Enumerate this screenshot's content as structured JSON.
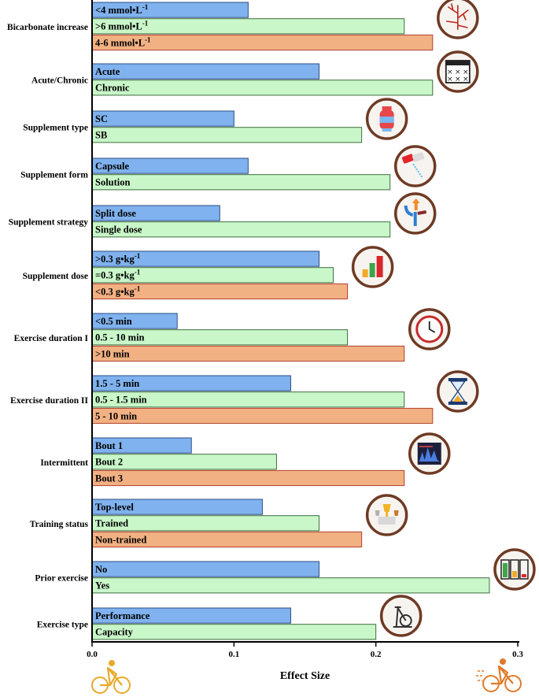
{
  "chart_data": {
    "type": "bar",
    "orientation": "horizontal",
    "xlabel": "Effect Size",
    "xlim": [
      0.0,
      0.3
    ],
    "xticks": [
      "0.0",
      "0.1",
      "0.2",
      "0.3"
    ],
    "grid": false,
    "colors": {
      "blue": "#7fb2ee",
      "green": "#c9f7c9",
      "orange": "#f2b183"
    },
    "groups": [
      {
        "label": "Bicarbonate increase",
        "icon": "blood-vessels-icon",
        "bars": [
          {
            "label": "<4 mmol•L",
            "sup": "-1",
            "value": 0.11,
            "color": "blue"
          },
          {
            "label": ">6 mmol•L",
            "sup": "-1",
            "value": 0.22,
            "color": "green"
          },
          {
            "label": "4-6 mmol•L",
            "sup": "-1",
            "value": 0.24,
            "color": "orange"
          }
        ]
      },
      {
        "label": "Acute/Chronic",
        "icon": "calendar-icon",
        "bars": [
          {
            "label": "Acute",
            "value": 0.16,
            "color": "blue"
          },
          {
            "label": "Chronic",
            "value": 0.24,
            "color": "green"
          }
        ]
      },
      {
        "label": "Supplement type",
        "icon": "supplement-bottle-icon",
        "bars": [
          {
            "label": "SC",
            "value": 0.1,
            "color": "blue"
          },
          {
            "label": "SB",
            "value": 0.19,
            "color": "green"
          }
        ]
      },
      {
        "label": "Supplement form",
        "icon": "capsule-pour-icon",
        "bars": [
          {
            "label": "Capsule",
            "value": 0.11,
            "color": "blue"
          },
          {
            "label": "Solution",
            "value": 0.21,
            "color": "green"
          }
        ]
      },
      {
        "label": "Supplement strategy",
        "icon": "split-arrows-icon",
        "bars": [
          {
            "label": "Split dose",
            "value": 0.09,
            "color": "blue"
          },
          {
            "label": "Single dose",
            "value": 0.21,
            "color": "green"
          }
        ]
      },
      {
        "label": "Supplement dose",
        "icon": "bar-chart-icon",
        "bars": [
          {
            "label": ">0.3 g•kg",
            "sup": "-1",
            "value": 0.16,
            "color": "blue"
          },
          {
            "label": "=0.3 g•kg",
            "sup": "-1",
            "value": 0.17,
            "color": "green"
          },
          {
            "label": "<0.3 g•kg",
            "sup": "-1",
            "value": 0.18,
            "color": "orange"
          }
        ]
      },
      {
        "label": "Exercise duration I",
        "icon": "clock-icon",
        "bars": [
          {
            "label": "<0.5 min",
            "value": 0.06,
            "color": "blue"
          },
          {
            "label": "0.5 - 10 min",
            "value": 0.18,
            "color": "green"
          },
          {
            "label": ">10 min",
            "value": 0.22,
            "color": "orange"
          }
        ]
      },
      {
        "label": "Exercise duration II",
        "icon": "hourglass-icon",
        "bars": [
          {
            "label": "1.5 - 5 min",
            "value": 0.14,
            "color": "blue"
          },
          {
            "label": "0.5 - 1.5 min",
            "value": 0.22,
            "color": "green"
          },
          {
            "label": "5 - 10 min",
            "value": 0.24,
            "color": "orange"
          }
        ]
      },
      {
        "label": "Intermittent",
        "icon": "signal-chart-icon",
        "bars": [
          {
            "label": "Bout 1",
            "value": 0.07,
            "color": "blue"
          },
          {
            "label": "Bout 2",
            "value": 0.13,
            "color": "green"
          },
          {
            "label": "Bout 3",
            "value": 0.22,
            "color": "orange"
          }
        ]
      },
      {
        "label": "Training status",
        "icon": "trophy-icon",
        "bars": [
          {
            "label": "Top-level",
            "value": 0.12,
            "color": "blue"
          },
          {
            "label": "Trained",
            "value": 0.16,
            "color": "green"
          },
          {
            "label": "Non-trained",
            "value": 0.19,
            "color": "orange"
          }
        ]
      },
      {
        "label": "Prior exercise",
        "icon": "battery-icon",
        "bars": [
          {
            "label": "No",
            "value": 0.16,
            "color": "blue"
          },
          {
            "label": "Yes",
            "value": 0.28,
            "color": "green"
          }
        ]
      },
      {
        "label": "Exercise type",
        "icon": "exercise-bike-icon",
        "bars": [
          {
            "label": "Performance",
            "value": 0.14,
            "color": "blue"
          },
          {
            "label": "Capacity",
            "value": 0.2,
            "color": "green"
          }
        ]
      }
    ],
    "corner_icons": {
      "left": "cyclist-icon",
      "right": "fast-cyclist-icon"
    }
  }
}
